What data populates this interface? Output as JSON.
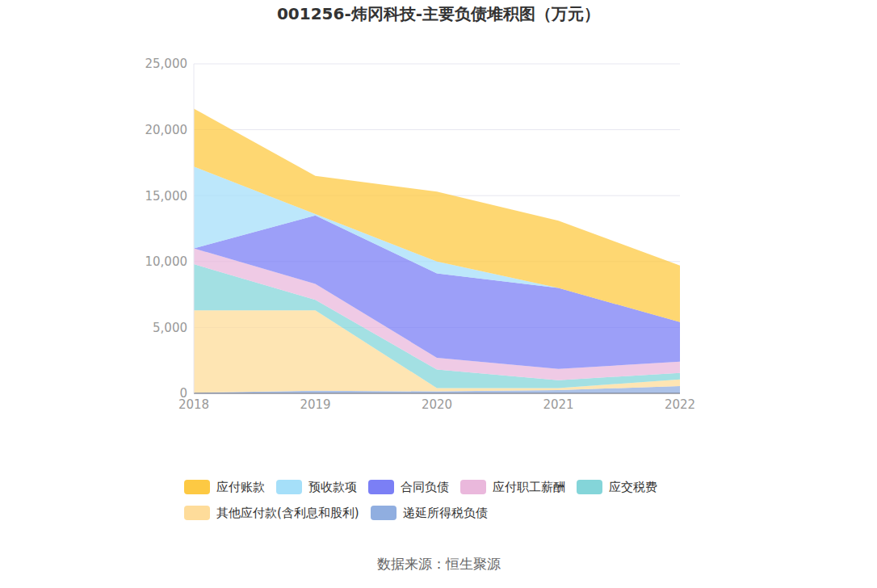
{
  "chart_data": {
    "type": "area",
    "title": "001256-炜冈科技-主要负债堆积图（万元）",
    "source": "数据来源：恒生聚源",
    "categories": [
      "2018",
      "2019",
      "2020",
      "2021",
      "2022"
    ],
    "stacked": true,
    "grid": true,
    "legend": "bottom",
    "ylim": [
      0,
      25000
    ],
    "yticks": [
      0,
      {
        "value": 5000,
        "label": "5,000"
      },
      {
        "value": 10000,
        "label": "10,000"
      },
      {
        "value": 15000,
        "label": "15,000"
      },
      {
        "value": 20000,
        "label": "20,000"
      },
      {
        "value": 25000,
        "label": "25,000"
      }
    ],
    "series": [
      {
        "name": "应付账款",
        "color": "#fdc943",
        "values": [
          4400,
          2900,
          5300,
          5100,
          4300
        ]
      },
      {
        "name": "预收款项",
        "color": "#a5dff9",
        "values": [
          6200,
          100,
          900,
          0,
          0
        ]
      },
      {
        "name": "合同负债",
        "color": "#7b7ff5",
        "values": [
          0,
          5200,
          6400,
          6150,
          3000
        ]
      },
      {
        "name": "应付职工薪酬",
        "color": "#eab8dc",
        "values": [
          1200,
          1200,
          900,
          850,
          850
        ]
      },
      {
        "name": "应交税费",
        "color": "#84d5d9",
        "values": [
          3500,
          800,
          1400,
          600,
          500
        ]
      },
      {
        "name": "其他应付款(含利息和股利)",
        "color": "#fedc9a",
        "values": [
          6250,
          6100,
          250,
          150,
          500
        ]
      },
      {
        "name": "递延所得税负债",
        "color": "#90aee0",
        "values": [
          50,
          200,
          150,
          250,
          550
        ]
      }
    ]
  }
}
